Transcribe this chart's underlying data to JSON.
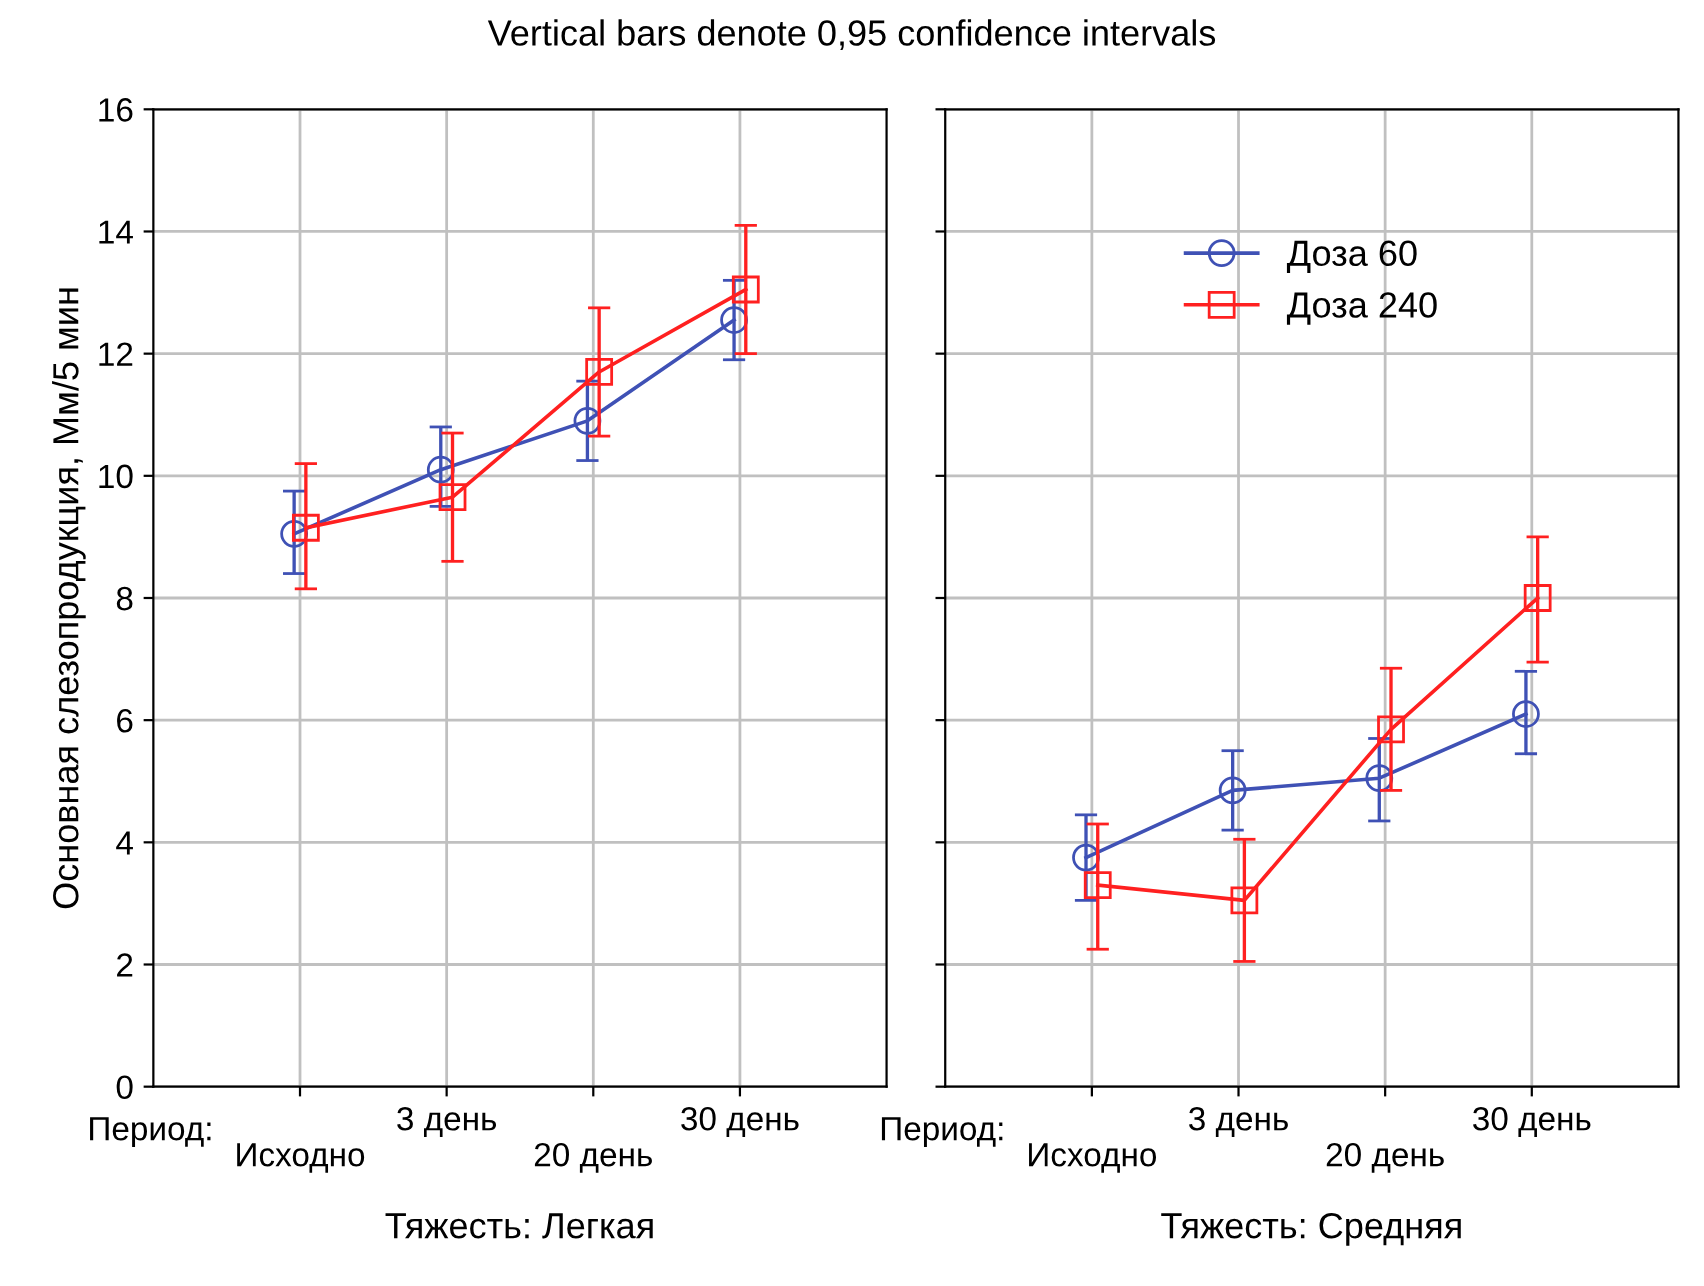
{
  "chart_data": [
    {
      "type": "line",
      "title": "Vertical bars denote 0,95 confidence intervals",
      "ylabel": "Основная слезопродукция, Мм/5 мин",
      "xlabel": "Тяжесть: Легкая",
      "annotations": [
        "Период:"
      ],
      "categories": [
        "Исходно",
        "3 день",
        "20 день",
        "30 день"
      ],
      "ylim": [
        0,
        16
      ],
      "yticks": [
        0,
        2,
        4,
        6,
        8,
        10,
        12,
        14,
        16
      ],
      "grid": true,
      "legend": false,
      "series": [
        {
          "color": "#3f51b5",
          "marker": "circle",
          "values": [
            9.05,
            10.1,
            10.9,
            12.55
          ],
          "errors": [
            [
              8.4,
              9.75
            ],
            [
              9.5,
              10.8
            ],
            [
              10.25,
              11.55
            ],
            [
              11.9,
              13.2
            ]
          ]
        },
        {
          "color": "#ff2020",
          "marker": "square",
          "values": [
            9.15,
            9.65,
            11.7,
            13.05
          ],
          "errors": [
            [
              8.15,
              10.2
            ],
            [
              8.6,
              10.7
            ],
            [
              10.65,
              12.75
            ],
            [
              12.0,
              14.1
            ]
          ]
        }
      ]
    },
    {
      "type": "line",
      "xlabel": "Тяжесть: Средняя",
      "annotations": [
        "Период:"
      ],
      "categories": [
        "Исходно",
        "3 день",
        "20 день",
        "30 день"
      ],
      "ylim": [
        0,
        16
      ],
      "yticks": [
        0,
        2,
        4,
        6,
        8,
        10,
        12,
        14,
        16
      ],
      "tick_labels": "x",
      "grid": true,
      "legend": "top",
      "series": [
        {
          "name": "Доза 60",
          "color": "#3f51b5",
          "marker": "circle",
          "values": [
            3.75,
            4.85,
            5.05,
            6.1
          ],
          "errors": [
            [
              3.05,
              4.45
            ],
            [
              4.2,
              5.5
            ],
            [
              4.35,
              5.7
            ],
            [
              5.45,
              6.8
            ]
          ]
        },
        {
          "name": "Доза 240",
          "color": "#ff2020",
          "marker": "square",
          "values": [
            3.3,
            3.05,
            5.85,
            8.0
          ],
          "errors": [
            [
              2.25,
              4.3
            ],
            [
              2.05,
              4.05
            ],
            [
              4.85,
              6.85
            ],
            [
              6.95,
              9.0
            ]
          ]
        }
      ]
    }
  ]
}
